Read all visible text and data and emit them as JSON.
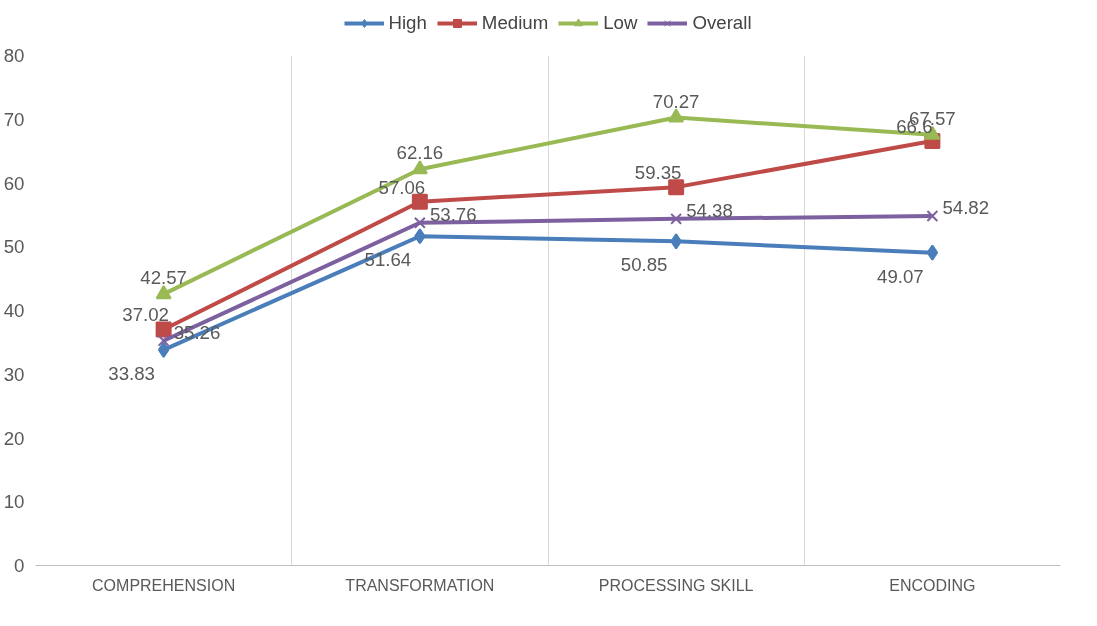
{
  "chart_data": {
    "type": "line",
    "categories": [
      "COMPREHENSION",
      "TRANSFORMATION",
      "PROCESSING SKILL",
      "ENCODING"
    ],
    "series": [
      {
        "name": "High",
        "color": "#4a7ebb",
        "marker": "diamond",
        "values": [
          33.83,
          51.64,
          50.85,
          49.07
        ]
      },
      {
        "name": "Medium",
        "color": "#be4b48",
        "marker": "square",
        "values": [
          37.02,
          57.06,
          59.35,
          66.6
        ]
      },
      {
        "name": "Low",
        "color": "#98b954",
        "marker": "triangle",
        "values": [
          42.57,
          62.16,
          70.27,
          67.57
        ]
      },
      {
        "name": "Overall",
        "color": "#7d60a0",
        "marker": "cross",
        "values": [
          35.26,
          53.76,
          54.38,
          54.82
        ]
      }
    ],
    "ylim": [
      0,
      80
    ],
    "yticks": [
      0,
      10,
      20,
      30,
      40,
      50,
      60,
      70,
      80
    ],
    "grid": "x",
    "legend": "top",
    "data_labels": true,
    "line_style": "solid"
  }
}
